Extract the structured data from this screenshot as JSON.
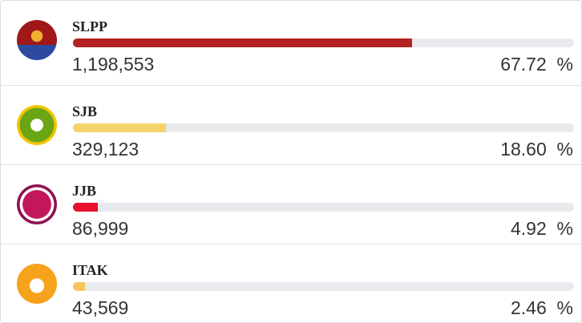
{
  "chart_data": {
    "type": "bar",
    "categories": [
      "SLPP",
      "SJB",
      "JJB",
      "ITAK"
    ],
    "votes": [
      "1,198,553",
      "329,123",
      "86,999",
      "43,569"
    ],
    "values": [
      67.72,
      18.6,
      4.92,
      2.46
    ],
    "value_labels": [
      "67.72  %",
      "18.60  %",
      "4.92  %",
      "2.46  %"
    ],
    "colors": [
      "#b22222",
      "#f5d36b",
      "#e8102a",
      "#f5c75a"
    ],
    "xlim": [
      0,
      100
    ]
  }
}
